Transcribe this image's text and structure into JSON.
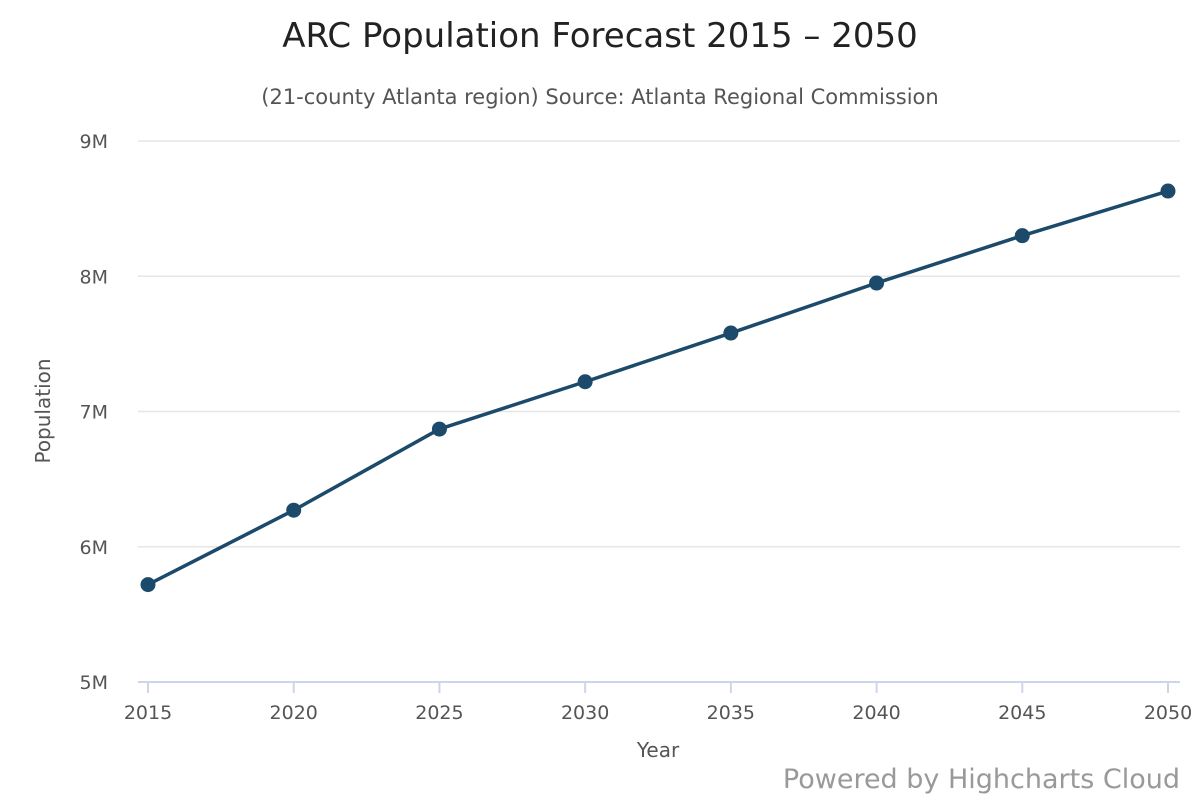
{
  "chart_data": {
    "type": "line",
    "title": "ARC Population Forecast 2015 – 2050",
    "subtitle": "(21-county Atlanta region) Source: Atlanta Regional Commission",
    "xlabel": "Year",
    "ylabel": "Population",
    "categories": [
      "2015",
      "2020",
      "2025",
      "2030",
      "2035",
      "2040",
      "2045",
      "2050"
    ],
    "series": [
      {
        "values": [
          5720000,
          6270000,
          6870000,
          7220000,
          7580000,
          7950000,
          8300000,
          8630000
        ]
      }
    ],
    "ylim": [
      5000000,
      9000000
    ],
    "yticks": [
      5000000,
      6000000,
      7000000,
      8000000,
      9000000
    ],
    "ytick_labels": [
      "5M",
      "6M",
      "7M",
      "8M",
      "9M"
    ],
    "grid": true,
    "legend": "none",
    "colors": {
      "series": "#1b4a6b",
      "grid": "#e6e6e6",
      "axis": "#ccd6eb",
      "text": "#555555",
      "title": "#222222",
      "credits": "#999999"
    }
  },
  "credits": "Powered by Highcharts Cloud"
}
